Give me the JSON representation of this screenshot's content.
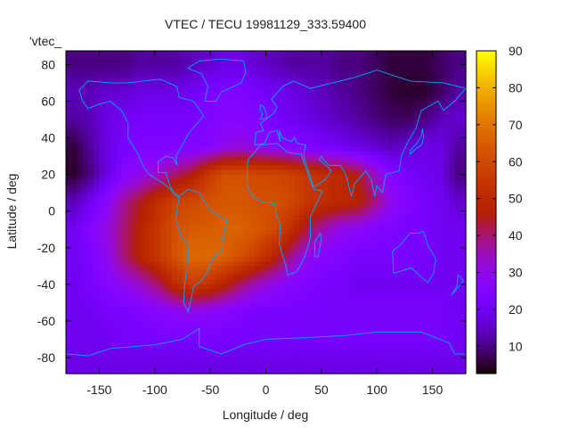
{
  "chart_data": {
    "type": "heatmap",
    "title": "VTEC / TECU 19981129_333.59400",
    "xlabel": "Longitude / deg",
    "ylabel": "Latitude / deg",
    "legend_entry": "'vtec_",
    "legend_placement": "top-left",
    "xlim": [
      -180,
      180
    ],
    "ylim": [
      -88.75,
      87.5
    ],
    "xticks": [
      -150,
      -100,
      -50,
      0,
      50,
      100,
      150
    ],
    "yticks": [
      80,
      60,
      40,
      20,
      0,
      -20,
      -40,
      -60,
      -80
    ],
    "colorbar": {
      "range": [
        2.6,
        90
      ],
      "ticks": [
        10,
        20,
        30,
        40,
        50,
        60,
        70,
        80,
        90
      ],
      "palette": "black-purple-red-orange-yellow"
    },
    "grid": false,
    "lon": [
      -172.5,
      -157.5,
      -142.5,
      -127.5,
      -112.5,
      -97.5,
      -82.5,
      -67.5,
      -52.5,
      -37.5,
      -22.5,
      -7.5,
      7.5,
      22.5,
      37.5,
      52.5,
      67.5,
      82.5,
      97.5,
      112.5,
      127.5,
      142.5,
      157.5,
      172.5
    ],
    "lat": [
      80,
      65,
      50,
      35,
      20,
      5,
      -10,
      -25,
      -40,
      -55,
      -70,
      -85
    ],
    "values": [
      [
        10,
        10,
        10,
        10,
        12,
        12,
        12,
        14,
        16,
        18,
        18,
        16,
        14,
        12,
        12,
        12,
        10,
        10,
        8,
        6,
        6,
        6,
        8,
        10
      ],
      [
        14,
        14,
        16,
        16,
        18,
        18,
        18,
        20,
        22,
        24,
        24,
        22,
        20,
        18,
        16,
        14,
        12,
        10,
        8,
        6,
        5,
        5,
        8,
        12
      ],
      [
        12,
        14,
        18,
        20,
        22,
        22,
        22,
        22,
        24,
        26,
        26,
        24,
        22,
        20,
        18,
        16,
        14,
        12,
        10,
        8,
        8,
        10,
        14,
        16
      ],
      [
        6,
        12,
        18,
        22,
        24,
        24,
        24,
        24,
        26,
        30,
        32,
        30,
        28,
        26,
        24,
        22,
        20,
        18,
        16,
        14,
        16,
        18,
        18,
        12
      ],
      [
        5,
        10,
        18,
        26,
        30,
        34,
        40,
        45,
        55,
        62,
        62,
        60,
        60,
        58,
        55,
        52,
        50,
        45,
        35,
        26,
        22,
        20,
        18,
        10
      ],
      [
        14,
        20,
        28,
        38,
        45,
        52,
        58,
        60,
        62,
        64,
        64,
        62,
        62,
        60,
        55,
        52,
        50,
        48,
        40,
        30,
        25,
        22,
        20,
        16
      ],
      [
        20,
        26,
        32,
        40,
        48,
        55,
        62,
        64,
        65,
        66,
        66,
        64,
        60,
        52,
        42,
        35,
        30,
        28,
        25,
        24,
        22,
        22,
        20,
        20
      ],
      [
        20,
        24,
        30,
        40,
        48,
        55,
        62,
        68,
        68,
        66,
        62,
        56,
        48,
        38,
        30,
        26,
        24,
        22,
        22,
        22,
        22,
        22,
        20,
        20
      ],
      [
        20,
        22,
        26,
        30,
        34,
        40,
        50,
        56,
        54,
        48,
        40,
        34,
        30,
        26,
        24,
        22,
        22,
        20,
        20,
        20,
        20,
        20,
        20,
        20
      ],
      [
        20,
        20,
        22,
        22,
        24,
        26,
        28,
        30,
        28,
        26,
        24,
        22,
        22,
        22,
        22,
        22,
        22,
        22,
        22,
        22,
        22,
        22,
        22,
        20
      ],
      [
        20,
        20,
        20,
        22,
        22,
        22,
        22,
        22,
        22,
        22,
        22,
        22,
        22,
        22,
        22,
        22,
        22,
        22,
        22,
        22,
        22,
        22,
        22,
        20
      ],
      [
        18,
        18,
        18,
        18,
        18,
        18,
        18,
        18,
        18,
        18,
        18,
        18,
        18,
        18,
        18,
        18,
        18,
        18,
        18,
        18,
        18,
        18,
        18,
        18
      ]
    ],
    "coastline_color": "#00a8ff"
  }
}
